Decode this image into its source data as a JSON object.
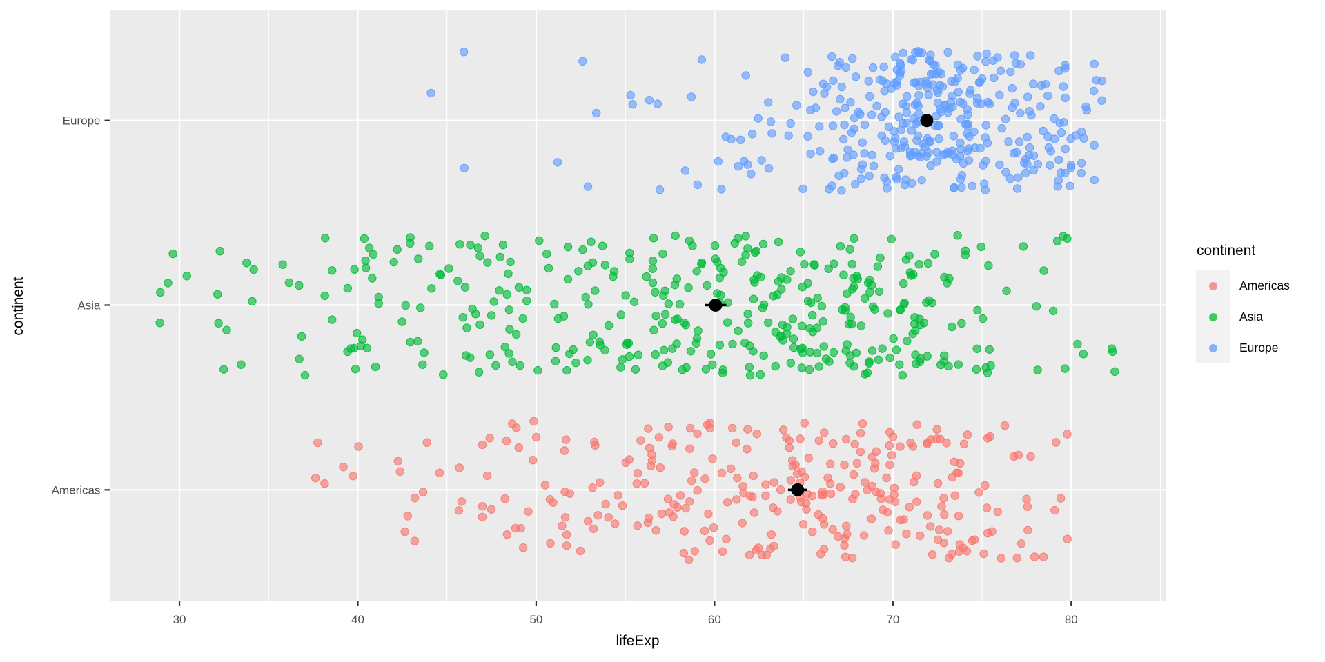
{
  "chart_data": {
    "type": "scatter",
    "variant": "jittered strip plot (geom_jitter) with black mean ± SE summary points",
    "title": "",
    "xlabel": "lifeExp",
    "ylabel": "continent",
    "x_axis": {
      "tick_values": [
        30,
        40,
        50,
        60,
        70,
        80
      ],
      "tick_labels": [
        "30",
        "40",
        "50",
        "60",
        "70",
        "80"
      ],
      "minor_tick_values": [
        35,
        45,
        55,
        65,
        75,
        85
      ],
      "domain": [
        26.11,
        85.29
      ]
    },
    "y_axis": {
      "tick_labels": [
        "Americas",
        "Asia",
        "Europe"
      ],
      "rows": [
        1,
        2,
        3
      ],
      "grid": "major rows only"
    },
    "legend": {
      "title": "continent",
      "position": "right",
      "entries": [
        {
          "label": "Americas",
          "color": "#F8766D"
        },
        {
          "label": "Asia",
          "color": "#00BA38"
        },
        {
          "label": "Europe",
          "color": "#619CFF"
        }
      ]
    },
    "style": {
      "panel_bg": "#EBEBEB",
      "grid_color": "#FFFFFF",
      "tick_label_color": "#4D4D4D",
      "tick_mark_color": "#333333",
      "axis_title_color": "#000000",
      "mean_point_color": "#000000",
      "point_alpha": 0.62,
      "legend_key_bg": "#F2F2F2"
    },
    "series": [
      {
        "name": "Americas",
        "color": "#F8766D",
        "row": 1,
        "n": 300,
        "x_min": 37.6,
        "x_max": 80.7,
        "histogram_bins": [
          [
            37,
            42,
            6
          ],
          [
            42,
            46,
            12
          ],
          [
            46,
            50,
            18
          ],
          [
            50,
            54,
            22
          ],
          [
            54,
            58,
            30
          ],
          [
            58,
            62,
            38
          ],
          [
            62,
            66,
            44
          ],
          [
            66,
            70,
            52
          ],
          [
            70,
            74,
            48
          ],
          [
            74,
            78,
            24
          ],
          [
            78,
            80.7,
            6
          ]
        ]
      },
      {
        "name": "Asia",
        "color": "#00BA38",
        "row": 2,
        "n": 396,
        "x_min": 28.8,
        "x_max": 82.6,
        "histogram_bins": [
          [
            28.8,
            32,
            5
          ],
          [
            32,
            36,
            10
          ],
          [
            36,
            40,
            16
          ],
          [
            40,
            44,
            24
          ],
          [
            44,
            48,
            28
          ],
          [
            48,
            52,
            28
          ],
          [
            52,
            56,
            34
          ],
          [
            56,
            60,
            44
          ],
          [
            60,
            64,
            54
          ],
          [
            64,
            68,
            60
          ],
          [
            68,
            72,
            52
          ],
          [
            72,
            76,
            26
          ],
          [
            76,
            80,
            10
          ],
          [
            80,
            82.6,
            5
          ]
        ]
      },
      {
        "name": "Europe",
        "color": "#619CFF",
        "row": 3,
        "n": 360,
        "x_min": 43.6,
        "x_max": 81.8,
        "histogram_bins": [
          [
            43.5,
            45,
            1
          ],
          [
            45,
            50,
            2
          ],
          [
            50,
            55,
            4
          ],
          [
            55,
            60,
            9
          ],
          [
            60,
            65,
            22
          ],
          [
            65,
            70,
            71
          ],
          [
            70,
            75,
            157
          ],
          [
            75,
            80,
            80
          ],
          [
            80,
            81.8,
            14
          ]
        ]
      }
    ],
    "summary_points": [
      {
        "continent": "Americas",
        "mean": 64.66,
        "se": 0.54
      },
      {
        "continent": "Asia",
        "mean": 60.06,
        "se": 0.6
      },
      {
        "continent": "Europe",
        "mean": 71.9,
        "se": 0.29
      }
    ],
    "jitter": {
      "height_fraction": 0.38
    }
  }
}
